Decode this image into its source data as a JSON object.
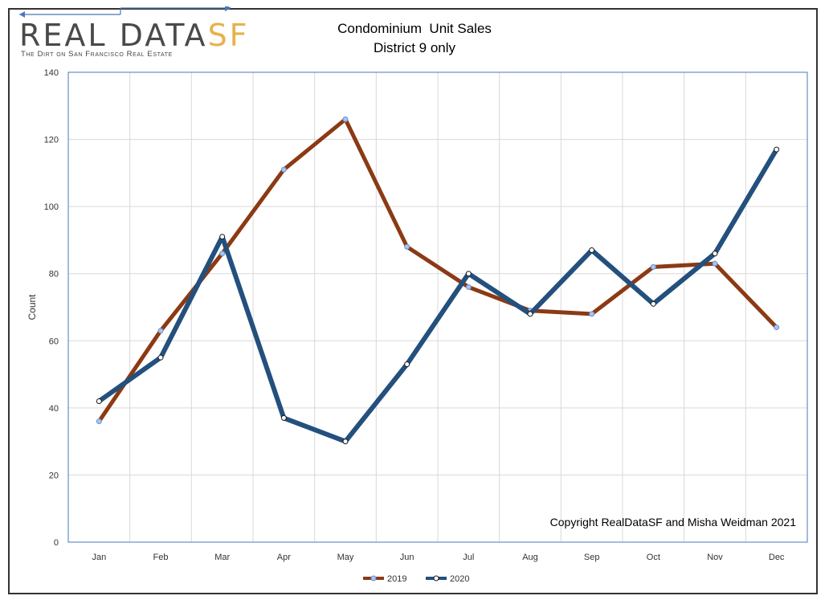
{
  "logo": {
    "name_main": "REAL DATA",
    "name_accent": "SF",
    "tagline": "The Dirt on San Francisco Real Estate",
    "accent_color": "#e6b24c"
  },
  "chart_data": {
    "type": "line",
    "title": "Condominium  Unit Sales",
    "subtitle": "District 9 only",
    "xlabel": "",
    "ylabel": "Count",
    "categories": [
      "Jan",
      "Feb",
      "Mar",
      "Apr",
      "May",
      "Jun",
      "Jul",
      "Aug",
      "Sep",
      "Oct",
      "Nov",
      "Dec"
    ],
    "ylim": [
      0,
      140
    ],
    "yticks": [
      0,
      20,
      40,
      60,
      80,
      100,
      120,
      140
    ],
    "grid": true,
    "legend_position": "bottom-center",
    "series": [
      {
        "name": "2019",
        "color": "#8b3a14",
        "values": [
          36,
          63,
          86,
          111,
          126,
          88,
          76,
          69,
          68,
          82,
          83,
          64
        ]
      },
      {
        "name": "2020",
        "color": "#23507d",
        "values": [
          42,
          55,
          91,
          37,
          30,
          53,
          80,
          68,
          87,
          71,
          86,
          117
        ]
      }
    ],
    "annotation": "Copyright RealDataSF and Misha Weidman 2021"
  }
}
